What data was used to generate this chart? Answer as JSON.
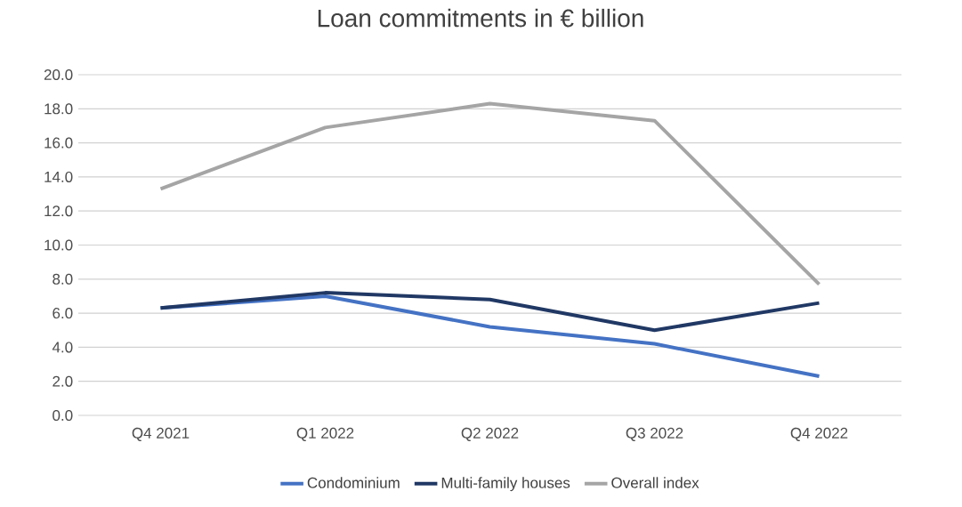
{
  "chart_data": {
    "type": "line",
    "title": "Loan commitments in € billion",
    "categories": [
      "Q4 2021",
      "Q1 2022",
      "Q2 2022",
      "Q3 2022",
      "Q4 2022"
    ],
    "series": [
      {
        "name": "Condominium",
        "color": "#4472c4",
        "values": [
          6.3,
          7.0,
          5.2,
          4.2,
          2.3
        ]
      },
      {
        "name": "Multi-family houses",
        "color": "#203864",
        "values": [
          6.3,
          7.2,
          6.8,
          5.0,
          6.6
        ]
      },
      {
        "name": "Overall index",
        "color": "#a5a5a5",
        "values": [
          13.3,
          16.9,
          18.3,
          17.3,
          7.7
        ]
      }
    ],
    "ylim": [
      0,
      20
    ],
    "yticks": [
      {
        "value": 0,
        "label": "0.0"
      },
      {
        "value": 2,
        "label": "2.0"
      },
      {
        "value": 4,
        "label": "4.0"
      },
      {
        "value": 6,
        "label": "6.0"
      },
      {
        "value": 8,
        "label": "8.0"
      },
      {
        "value": 10,
        "label": "10.0"
      },
      {
        "value": 12,
        "label": "12.0"
      },
      {
        "value": 14,
        "label": "14.0"
      },
      {
        "value": 16,
        "label": "16.0"
      },
      {
        "value": 18,
        "label": "18.0"
      },
      {
        "value": 20,
        "label": "20.0"
      }
    ],
    "grid": "y",
    "legend": "bottom"
  }
}
